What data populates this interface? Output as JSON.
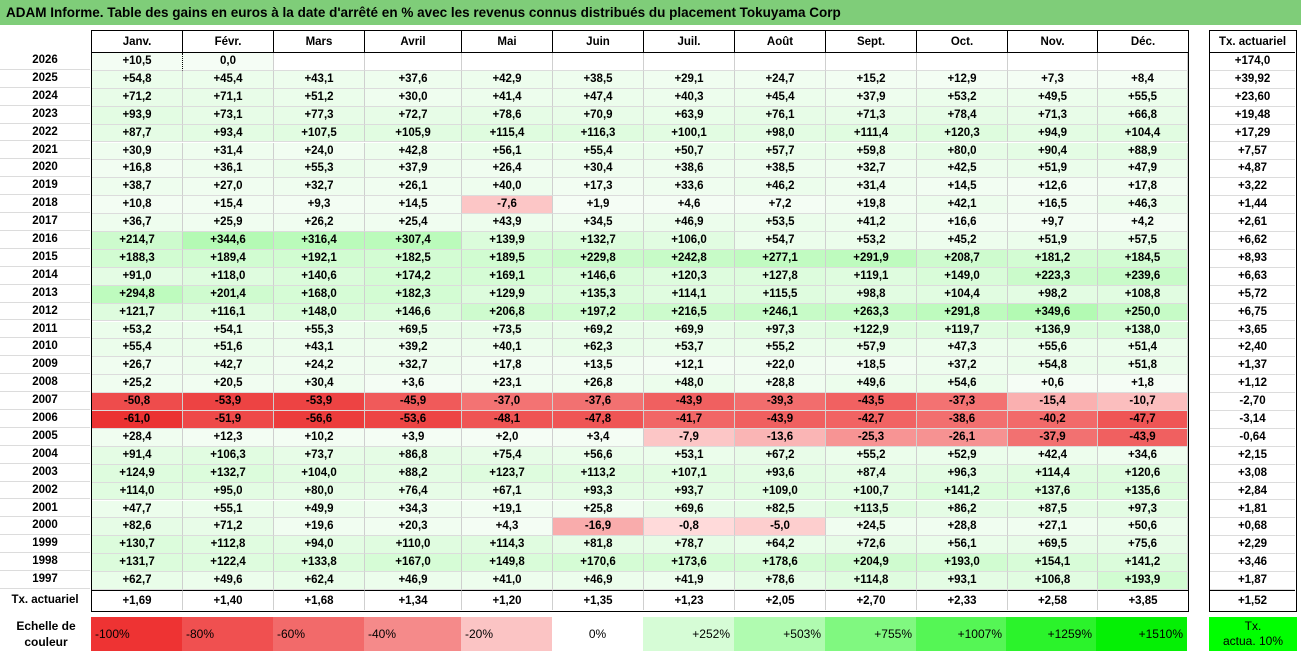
{
  "title": "ADAM Informe. Table des gains en euros à la date d'arrêté en % avec les revenus connus distribués du placement Tokuyama Corp",
  "months": [
    "Janv.",
    "Févr.",
    "Mars",
    "Avril",
    "Mai",
    "Juin",
    "Juil.",
    "Août",
    "Sept.",
    "Oct.",
    "Nov.",
    "Déc."
  ],
  "actuarial_header": "Tx. actuariel",
  "rows": [
    {
      "year": "2026",
      "values": [
        "+10,5",
        "0,0",
        "",
        "",
        "",
        "",
        "",
        "",
        "",
        "",
        "",
        ""
      ],
      "act": "+174,0"
    },
    {
      "year": "2025",
      "values": [
        "+54,8",
        "+45,4",
        "+43,1",
        "+37,6",
        "+42,9",
        "+38,5",
        "+29,1",
        "+24,7",
        "+15,2",
        "+12,9",
        "+7,3",
        "+8,4"
      ],
      "act": "+39,92"
    },
    {
      "year": "2024",
      "values": [
        "+71,2",
        "+71,1",
        "+51,2",
        "+30,0",
        "+41,4",
        "+47,4",
        "+40,3",
        "+45,4",
        "+37,9",
        "+53,2",
        "+49,5",
        "+55,5"
      ],
      "act": "+23,60"
    },
    {
      "year": "2023",
      "values": [
        "+93,9",
        "+73,1",
        "+77,3",
        "+72,7",
        "+78,6",
        "+70,9",
        "+63,9",
        "+76,1",
        "+71,3",
        "+78,4",
        "+71,3",
        "+66,8"
      ],
      "act": "+19,48"
    },
    {
      "year": "2022",
      "values": [
        "+87,7",
        "+93,4",
        "+107,5",
        "+105,9",
        "+115,4",
        "+116,3",
        "+100,1",
        "+98,0",
        "+111,4",
        "+120,3",
        "+94,9",
        "+104,4"
      ],
      "act": "+17,29"
    },
    {
      "year": "2021",
      "values": [
        "+30,9",
        "+31,4",
        "+24,0",
        "+42,8",
        "+56,1",
        "+55,4",
        "+50,7",
        "+57,7",
        "+59,8",
        "+80,0",
        "+90,4",
        "+88,9"
      ],
      "act": "+7,57"
    },
    {
      "year": "2020",
      "values": [
        "+16,8",
        "+36,1",
        "+55,3",
        "+37,9",
        "+26,4",
        "+30,4",
        "+38,6",
        "+38,5",
        "+32,7",
        "+42,5",
        "+51,9",
        "+47,9"
      ],
      "act": "+4,87"
    },
    {
      "year": "2019",
      "values": [
        "+38,7",
        "+27,0",
        "+32,7",
        "+26,1",
        "+40,0",
        "+17,3",
        "+33,6",
        "+46,2",
        "+31,4",
        "+14,5",
        "+12,6",
        "+17,8"
      ],
      "act": "+3,22"
    },
    {
      "year": "2018",
      "values": [
        "+10,8",
        "+15,4",
        "+9,3",
        "+14,5",
        "-7,6",
        "+1,9",
        "+4,6",
        "+7,2",
        "+19,8",
        "+42,1",
        "+16,5",
        "+46,3"
      ],
      "act": "+1,44"
    },
    {
      "year": "2017",
      "values": [
        "+36,7",
        "+25,9",
        "+26,2",
        "+25,4",
        "+43,9",
        "+34,5",
        "+46,9",
        "+53,5",
        "+41,2",
        "+16,6",
        "+9,7",
        "+4,2"
      ],
      "act": "+2,61"
    },
    {
      "year": "2016",
      "values": [
        "+214,7",
        "+344,6",
        "+316,4",
        "+307,4",
        "+139,9",
        "+132,7",
        "+106,0",
        "+54,7",
        "+53,2",
        "+45,2",
        "+51,9",
        "+57,5"
      ],
      "act": "+6,62"
    },
    {
      "year": "2015",
      "values": [
        "+188,3",
        "+189,4",
        "+192,1",
        "+182,5",
        "+189,5",
        "+229,8",
        "+242,8",
        "+277,1",
        "+291,9",
        "+208,7",
        "+181,2",
        "+184,5"
      ],
      "act": "+8,93"
    },
    {
      "year": "2014",
      "values": [
        "+91,0",
        "+118,0",
        "+140,6",
        "+174,2",
        "+169,1",
        "+146,6",
        "+120,3",
        "+127,8",
        "+119,1",
        "+149,0",
        "+223,3",
        "+239,6"
      ],
      "act": "+6,63"
    },
    {
      "year": "2013",
      "values": [
        "+294,8",
        "+201,4",
        "+168,0",
        "+182,3",
        "+129,9",
        "+135,3",
        "+114,1",
        "+115,5",
        "+98,8",
        "+104,4",
        "+98,2",
        "+108,8"
      ],
      "act": "+5,72"
    },
    {
      "year": "2012",
      "values": [
        "+121,7",
        "+116,1",
        "+148,0",
        "+146,6",
        "+206,8",
        "+197,2",
        "+216,5",
        "+246,1",
        "+263,3",
        "+291,8",
        "+349,6",
        "+250,0"
      ],
      "act": "+6,75"
    },
    {
      "year": "2011",
      "values": [
        "+53,2",
        "+54,1",
        "+55,3",
        "+69,5",
        "+73,5",
        "+69,2",
        "+69,9",
        "+97,3",
        "+122,9",
        "+119,7",
        "+136,9",
        "+138,0"
      ],
      "act": "+3,65"
    },
    {
      "year": "2010",
      "values": [
        "+55,4",
        "+51,6",
        "+43,1",
        "+39,2",
        "+40,1",
        "+62,3",
        "+53,7",
        "+55,2",
        "+57,9",
        "+47,3",
        "+55,6",
        "+51,4"
      ],
      "act": "+2,40"
    },
    {
      "year": "2009",
      "values": [
        "+26,7",
        "+42,7",
        "+24,2",
        "+32,7",
        "+17,8",
        "+13,5",
        "+12,1",
        "+22,0",
        "+18,5",
        "+37,2",
        "+54,8",
        "+51,8"
      ],
      "act": "+1,37"
    },
    {
      "year": "2008",
      "values": [
        "+25,2",
        "+20,5",
        "+30,4",
        "+3,6",
        "+23,1",
        "+26,8",
        "+48,0",
        "+28,8",
        "+49,6",
        "+54,6",
        "+0,6",
        "+1,8"
      ],
      "act": "+1,12"
    },
    {
      "year": "2007",
      "values": [
        "-50,8",
        "-53,9",
        "-53,9",
        "-45,9",
        "-37,0",
        "-37,6",
        "-43,9",
        "-39,3",
        "-43,5",
        "-37,3",
        "-15,4",
        "-10,7"
      ],
      "act": "-2,70"
    },
    {
      "year": "2006",
      "values": [
        "-61,0",
        "-51,9",
        "-56,6",
        "-53,6",
        "-48,1",
        "-47,8",
        "-41,7",
        "-43,9",
        "-42,7",
        "-38,6",
        "-40,2",
        "-47,7"
      ],
      "act": "-3,14"
    },
    {
      "year": "2005",
      "values": [
        "+28,4",
        "+12,3",
        "+10,2",
        "+3,9",
        "+2,0",
        "+3,4",
        "-7,9",
        "-13,6",
        "-25,3",
        "-26,1",
        "-37,9",
        "-43,9"
      ],
      "act": "-0,64"
    },
    {
      "year": "2004",
      "values": [
        "+91,4",
        "+106,3",
        "+73,7",
        "+86,8",
        "+75,4",
        "+56,6",
        "+53,1",
        "+67,2",
        "+55,2",
        "+52,9",
        "+42,4",
        "+34,6"
      ],
      "act": "+2,15"
    },
    {
      "year": "2003",
      "values": [
        "+124,9",
        "+132,7",
        "+104,0",
        "+88,2",
        "+123,7",
        "+113,2",
        "+107,1",
        "+93,6",
        "+87,4",
        "+96,3",
        "+114,4",
        "+120,6"
      ],
      "act": "+3,08"
    },
    {
      "year": "2002",
      "values": [
        "+114,0",
        "+95,0",
        "+80,0",
        "+76,4",
        "+67,1",
        "+93,3",
        "+93,7",
        "+109,0",
        "+100,7",
        "+141,2",
        "+137,6",
        "+135,6"
      ],
      "act": "+2,84"
    },
    {
      "year": "2001",
      "values": [
        "+47,7",
        "+55,1",
        "+49,9",
        "+34,3",
        "+19,1",
        "+25,8",
        "+69,6",
        "+82,5",
        "+113,5",
        "+86,2",
        "+87,5",
        "+97,3"
      ],
      "act": "+1,81"
    },
    {
      "year": "2000",
      "values": [
        "+82,6",
        "+71,2",
        "+19,6",
        "+20,3",
        "+4,3",
        "-16,9",
        "-0,8",
        "-5,0",
        "+24,5",
        "+28,8",
        "+27,1",
        "+50,6"
      ],
      "act": "+0,68"
    },
    {
      "year": "1999",
      "values": [
        "+130,7",
        "+112,8",
        "+94,0",
        "+110,0",
        "+114,3",
        "+81,8",
        "+78,7",
        "+64,2",
        "+72,6",
        "+56,1",
        "+69,5",
        "+75,6"
      ],
      "act": "+2,29"
    },
    {
      "year": "1998",
      "values": [
        "+131,7",
        "+122,4",
        "+133,8",
        "+167,0",
        "+149,8",
        "+170,6",
        "+173,6",
        "+178,6",
        "+204,9",
        "+193,0",
        "+154,1",
        "+141,2"
      ],
      "act": "+3,46"
    },
    {
      "year": "1997",
      "values": [
        "+62,7",
        "+49,6",
        "+62,4",
        "+46,9",
        "+41,0",
        "+46,9",
        "+41,9",
        "+78,6",
        "+114,8",
        "+93,1",
        "+106,8",
        "+193,9"
      ],
      "act": "+1,87"
    }
  ],
  "footer": {
    "label": "Tx. actuariel",
    "values": [
      "+1,69",
      "+1,40",
      "+1,68",
      "+1,34",
      "+1,20",
      "+1,35",
      "+1,23",
      "+2,05",
      "+2,70",
      "+2,33",
      "+2,58",
      "+3,85"
    ],
    "act": "+1,52"
  },
  "scale": {
    "label_line1": "Echelle de",
    "label_line2": "couleur",
    "items": [
      {
        "text": "-100%",
        "color": "#ee3333",
        "align": "left"
      },
      {
        "text": "-80%",
        "color": "#f05050",
        "align": "left"
      },
      {
        "text": "-60%",
        "color": "#f26a6a",
        "align": "left"
      },
      {
        "text": "-40%",
        "color": "#f58a8a",
        "align": "left"
      },
      {
        "text": "-20%",
        "color": "#fbc4c4",
        "align": "left"
      },
      {
        "text": "0%",
        "color": "#ffffff",
        "align": "center"
      },
      {
        "text": "+252%",
        "color": "#d6fcd6",
        "align": "right"
      },
      {
        "text": "+503%",
        "color": "#b0fbb0",
        "align": "right"
      },
      {
        "text": "+755%",
        "color": "#80f880",
        "align": "right"
      },
      {
        "text": "+1007%",
        "color": "#55f655",
        "align": "right"
      },
      {
        "text": "+1259%",
        "color": "#2bf32b",
        "align": "right"
      },
      {
        "text": "+1510%",
        "color": "#05f005",
        "align": "right"
      }
    ],
    "legend_line1": "Tx.",
    "legend_line2": "actua. 10%",
    "legend_color": "#00ff00"
  }
}
